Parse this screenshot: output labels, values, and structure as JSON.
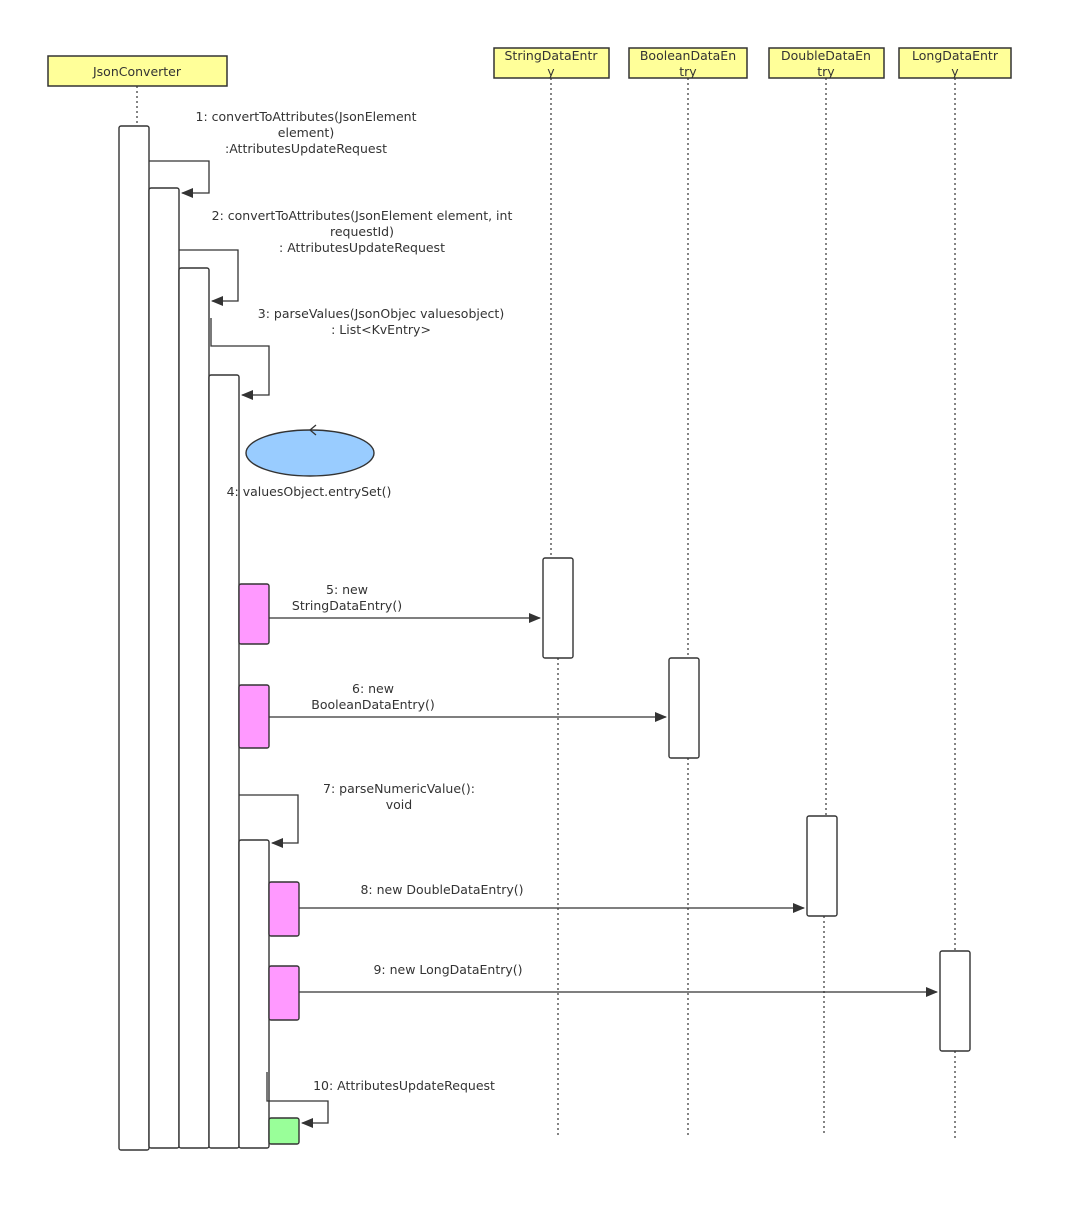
{
  "participants": [
    {
      "id": "json-converter",
      "label": "JsonConverter"
    },
    {
      "id": "string-data-entry",
      "label_lines": [
        "StringDataEntr",
        "y"
      ]
    },
    {
      "id": "boolean-data-entry",
      "label_lines": [
        "BooleanDataEn",
        "try"
      ]
    },
    {
      "id": "double-data-entry",
      "label_lines": [
        "DoubleDataEn",
        "try"
      ]
    },
    {
      "id": "long-data-entry",
      "label_lines": [
        "LongDataEntr",
        "y"
      ]
    }
  ],
  "messages": [
    {
      "n": 1,
      "lines": [
        "1: convertToAttributes(JsonElement",
        "element)",
        ":AttributesUpdateRequest"
      ]
    },
    {
      "n": 2,
      "lines": [
        "2: convertToAttributes(JsonElement element, int",
        "requestId)",
        ": AttributesUpdateRequest"
      ]
    },
    {
      "n": 3,
      "lines": [
        "3: parseValues(JsonObjec valuesobject)",
        ": List<KvEntry>"
      ]
    },
    {
      "n": 4,
      "lines": [
        "4: valuesObject.entrySet()"
      ]
    },
    {
      "n": 5,
      "lines": [
        "5: new",
        "StringDataEntry()"
      ]
    },
    {
      "n": 6,
      "lines": [
        "6: new",
        "BooleanDataEntry()"
      ]
    },
    {
      "n": 7,
      "lines": [
        "7: parseNumericValue():",
        "void"
      ]
    },
    {
      "n": 8,
      "lines": [
        "8: new DoubleDataEntry()"
      ]
    },
    {
      "n": 9,
      "lines": [
        "9: new LongDataEntry()"
      ]
    },
    {
      "n": 10,
      "lines": [
        "10: AttributesUpdateRequest"
      ]
    }
  ],
  "colors": {
    "header_fill": "#ffff99",
    "activation_pink": "#ff99ff",
    "activation_green": "#99ff99",
    "loop_ellipse": "#99ccff",
    "stroke": "#333333"
  }
}
